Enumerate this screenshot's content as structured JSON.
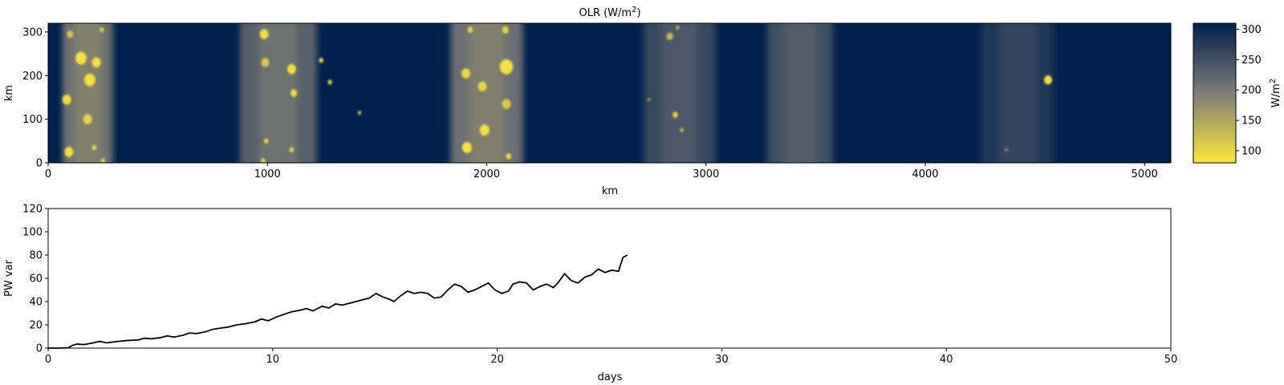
{
  "chart_data": [
    {
      "type": "heatmap",
      "title": "OLR (W/m",
      "title_superscript": "2",
      "title_suffix": ")",
      "xlabel": "km",
      "ylabel": "km",
      "xlim": [
        0,
        5120
      ],
      "ylim": [
        0,
        320
      ],
      "xticks": [
        {
          "value": 0,
          "label": "0"
        },
        {
          "value": 1000,
          "label": "1000"
        },
        {
          "value": 2000,
          "label": "2000"
        },
        {
          "value": 3000,
          "label": "3000"
        },
        {
          "value": 4000,
          "label": "4000"
        },
        {
          "value": 5000,
          "label": "5000"
        }
      ],
      "yticks": [
        {
          "value": 0,
          "label": "0"
        },
        {
          "value": 100,
          "label": "100"
        },
        {
          "value": 200,
          "label": "200"
        },
        {
          "value": 300,
          "label": "300"
        }
      ],
      "colormap": {
        "name": "cividis-like",
        "low_color": "#fde73b",
        "mid_color": "#7d7c78",
        "high_color": "#00204d",
        "vmin": 80,
        "vmax": 310
      },
      "colorbar": {
        "label": "W/m",
        "label_superscript": "2",
        "ticks": [
          {
            "value": 100,
            "label": "100"
          },
          {
            "value": 150,
            "label": "150"
          },
          {
            "value": 200,
            "label": "200"
          },
          {
            "value": 250,
            "label": "250"
          },
          {
            "value": 300,
            "label": "300"
          }
        ]
      },
      "convective_bands": [
        {
          "x_center": 180,
          "width": 230,
          "intensity": 0.92
        },
        {
          "x_center": 1050,
          "width": 350,
          "intensity": 0.78
        },
        {
          "x_center": 2000,
          "width": 330,
          "intensity": 0.9
        },
        {
          "x_center": 2880,
          "width": 330,
          "intensity": 0.55
        },
        {
          "x_center": 3430,
          "width": 300,
          "intensity": 0.6
        },
        {
          "x_center": 4420,
          "width": 330,
          "intensity": 0.35
        }
      ],
      "convective_cells": [
        {
          "x": 150,
          "y": 240,
          "r": 25,
          "olr": 85
        },
        {
          "x": 190,
          "y": 190,
          "r": 25,
          "olr": 85
        },
        {
          "x": 85,
          "y": 145,
          "r": 20,
          "olr": 90
        },
        {
          "x": 220,
          "y": 230,
          "r": 20,
          "olr": 88
        },
        {
          "x": 180,
          "y": 100,
          "r": 20,
          "olr": 100
        },
        {
          "x": 95,
          "y": 25,
          "r": 20,
          "olr": 90
        },
        {
          "x": 210,
          "y": 35,
          "r": 10,
          "olr": 95
        },
        {
          "x": 250,
          "y": 5,
          "r": 10,
          "olr": 110
        },
        {
          "x": 245,
          "y": 305,
          "r": 10,
          "olr": 105
        },
        {
          "x": 100,
          "y": 295,
          "r": 15,
          "olr": 120
        },
        {
          "x": 985,
          "y": 295,
          "r": 20,
          "olr": 90
        },
        {
          "x": 990,
          "y": 230,
          "r": 18,
          "olr": 110
        },
        {
          "x": 1110,
          "y": 215,
          "r": 20,
          "olr": 88
        },
        {
          "x": 1120,
          "y": 160,
          "r": 15,
          "olr": 95
        },
        {
          "x": 1245,
          "y": 235,
          "r": 10,
          "olr": 100
        },
        {
          "x": 1285,
          "y": 185,
          "r": 10,
          "olr": 110
        },
        {
          "x": 995,
          "y": 50,
          "r": 10,
          "olr": 95
        },
        {
          "x": 1110,
          "y": 30,
          "r": 10,
          "olr": 95
        },
        {
          "x": 980,
          "y": 5,
          "r": 10,
          "olr": 100
        },
        {
          "x": 1420,
          "y": 115,
          "r": 8,
          "olr": 110
        },
        {
          "x": 2090,
          "y": 220,
          "r": 30,
          "olr": 88
        },
        {
          "x": 1980,
          "y": 175,
          "r": 20,
          "olr": 100
        },
        {
          "x": 2090,
          "y": 135,
          "r": 20,
          "olr": 110
        },
        {
          "x": 1905,
          "y": 205,
          "r": 20,
          "olr": 95
        },
        {
          "x": 1990,
          "y": 75,
          "r": 22,
          "olr": 85
        },
        {
          "x": 1910,
          "y": 35,
          "r": 22,
          "olr": 85
        },
        {
          "x": 2100,
          "y": 15,
          "r": 12,
          "olr": 90
        },
        {
          "x": 1925,
          "y": 305,
          "r": 12,
          "olr": 100
        },
        {
          "x": 2085,
          "y": 305,
          "r": 15,
          "olr": 100
        },
        {
          "x": 2835,
          "y": 290,
          "r": 15,
          "olr": 130
        },
        {
          "x": 2860,
          "y": 110,
          "r": 12,
          "olr": 100
        },
        {
          "x": 2890,
          "y": 75,
          "r": 8,
          "olr": 120
        },
        {
          "x": 2740,
          "y": 145,
          "r": 6,
          "olr": 130
        },
        {
          "x": 2870,
          "y": 310,
          "r": 8,
          "olr": 130
        },
        {
          "x": 4560,
          "y": 190,
          "r": 18,
          "olr": 88
        },
        {
          "x": 4370,
          "y": 30,
          "r": 6,
          "olr": 150
        }
      ]
    },
    {
      "type": "line",
      "xlabel": "days",
      "ylabel": "PW var",
      "xlim": [
        0,
        50
      ],
      "ylim": [
        0,
        120
      ],
      "xticks": [
        {
          "value": 0,
          "label": "0"
        },
        {
          "value": 10,
          "label": "10"
        },
        {
          "value": 20,
          "label": "20"
        },
        {
          "value": 30,
          "label": "30"
        },
        {
          "value": 40,
          "label": "40"
        },
        {
          "value": 50,
          "label": "50"
        }
      ],
      "yticks": [
        {
          "value": 0,
          "label": "0"
        },
        {
          "value": 20,
          "label": "20"
        },
        {
          "value": 40,
          "label": "40"
        },
        {
          "value": 60,
          "label": "60"
        },
        {
          "value": 80,
          "label": "80"
        },
        {
          "value": 100,
          "label": "100"
        },
        {
          "value": 120,
          "label": "120"
        }
      ],
      "series": [
        {
          "color": "#000000",
          "x": [
            0,
            0.5,
            0.9,
            1.1,
            1.3,
            1.6,
            2.0,
            2.3,
            2.6,
            3.0,
            3.5,
            4.0,
            4.3,
            4.6,
            5.0,
            5.3,
            5.6,
            6.0,
            6.3,
            6.6,
            7.0,
            7.3,
            7.6,
            8.0,
            8.4,
            8.8,
            9.2,
            9.5,
            9.8,
            10.2,
            10.5,
            10.8,
            11.2,
            11.5,
            11.8,
            12.2,
            12.5,
            12.8,
            13.1,
            13.5,
            13.9,
            14.3,
            14.6,
            14.9,
            15.2,
            15.4,
            15.7,
            16.0,
            16.3,
            16.6,
            16.9,
            17.2,
            17.5,
            17.8,
            18.1,
            18.4,
            18.7,
            19.0,
            19.3,
            19.6,
            19.9,
            20.2,
            20.5,
            20.7,
            21.0,
            21.3,
            21.6,
            21.9,
            22.2,
            22.5,
            22.7,
            23.0,
            23.3,
            23.6,
            23.9,
            24.2,
            24.5,
            24.8,
            25.1,
            25.4,
            25.6,
            25.8
          ],
          "y": [
            0,
            0,
            0.3,
            2.5,
            3.5,
            3.0,
            4.5,
            5.8,
            4.5,
            5.5,
            6.5,
            7.0,
            8.5,
            8.0,
            9.0,
            10.5,
            9.5,
            11.0,
            13.0,
            12.5,
            14.0,
            16.0,
            17.0,
            18.0,
            20.0,
            21.0,
            22.5,
            25.0,
            23.5,
            27.0,
            29.0,
            31.0,
            32.5,
            34.0,
            32.0,
            36.0,
            34.5,
            38.0,
            37.0,
            39.0,
            41.0,
            43.0,
            47.0,
            44.0,
            42.0,
            40.0,
            45.0,
            49.0,
            47.0,
            48.0,
            47.0,
            43.0,
            44.0,
            50.0,
            55.0,
            53.0,
            48.0,
            50.0,
            53.0,
            56.0,
            50.0,
            47.0,
            49.0,
            55.0,
            57.0,
            56.0,
            50.0,
            53.0,
            55.0,
            52.0,
            56.0,
            64.0,
            58.0,
            56.0,
            61.0,
            63.0,
            68.0,
            65.0,
            67.0,
            66.0,
            78.0,
            80.0
          ]
        }
      ]
    }
  ]
}
